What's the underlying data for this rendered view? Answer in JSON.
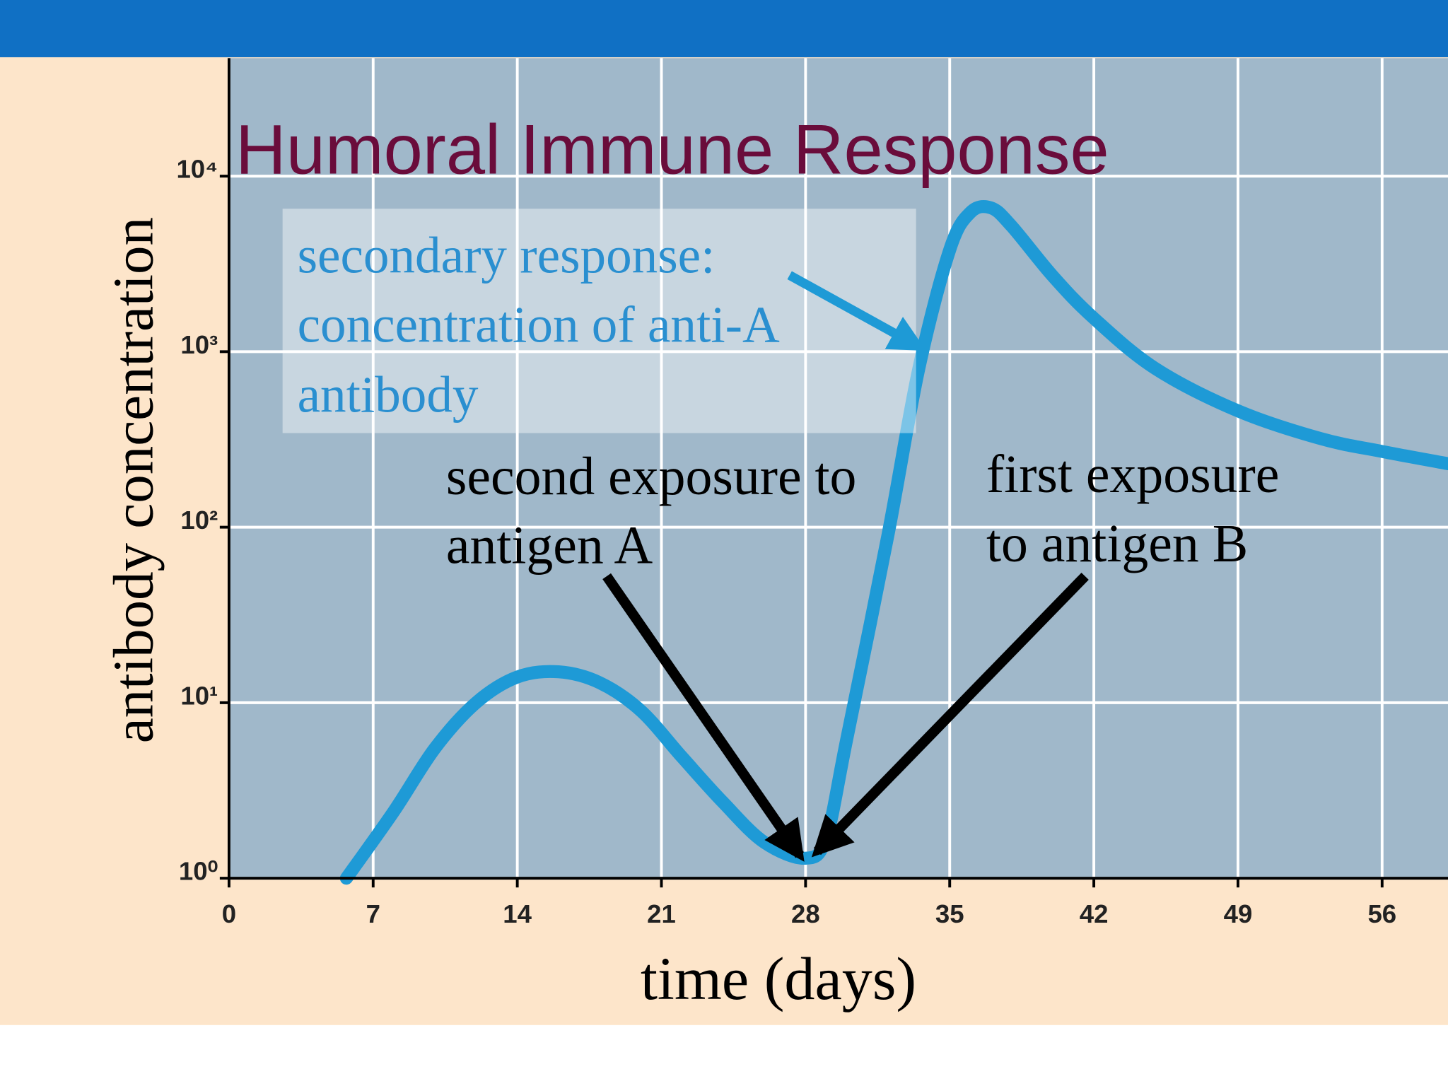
{
  "chart_data": {
    "type": "line",
    "title": "Humoral Immune Response",
    "x_label": "time (days)",
    "y_label": "antibody concentration",
    "annotations": [
      [
        "secondary response:",
        "concentration of anti-A",
        "antibody"
      ],
      [
        "second exposure to",
        "antigen A"
      ],
      [
        "first exposure",
        "to antigen B"
      ]
    ],
    "x": [
      5.7,
      8,
      10,
      12,
      14,
      16,
      18,
      20,
      22,
      24,
      26,
      28,
      29,
      30,
      32,
      33.5,
      35,
      36,
      37,
      38,
      40,
      42,
      45,
      49,
      53,
      56,
      59.2
    ],
    "values": [
      1,
      2.4,
      5.5,
      10,
      14,
      15,
      13,
      9,
      4.9,
      2.7,
      1.6,
      1.3,
      1.7,
      6.2,
      90,
      800,
      3800,
      6200,
      6600,
      5200,
      2700,
      1550,
      800,
      460,
      320,
      270,
      230
    ],
    "color": "#1e9ad6",
    "xlim": [
      0,
      59.2
    ],
    "ylim": [
      1,
      47000
    ],
    "log_y": true,
    "grid": true,
    "xticks": [
      0,
      7,
      14,
      21,
      28,
      35,
      42,
      49,
      56
    ],
    "yticks": [
      {
        "value": 1,
        "label": "10⁰"
      },
      {
        "value": 10,
        "label": "10¹"
      },
      {
        "value": 100,
        "label": "10²"
      },
      {
        "value": 1000,
        "label": "10³"
      },
      {
        "value": 10000,
        "label": "10⁴"
      }
    ]
  }
}
